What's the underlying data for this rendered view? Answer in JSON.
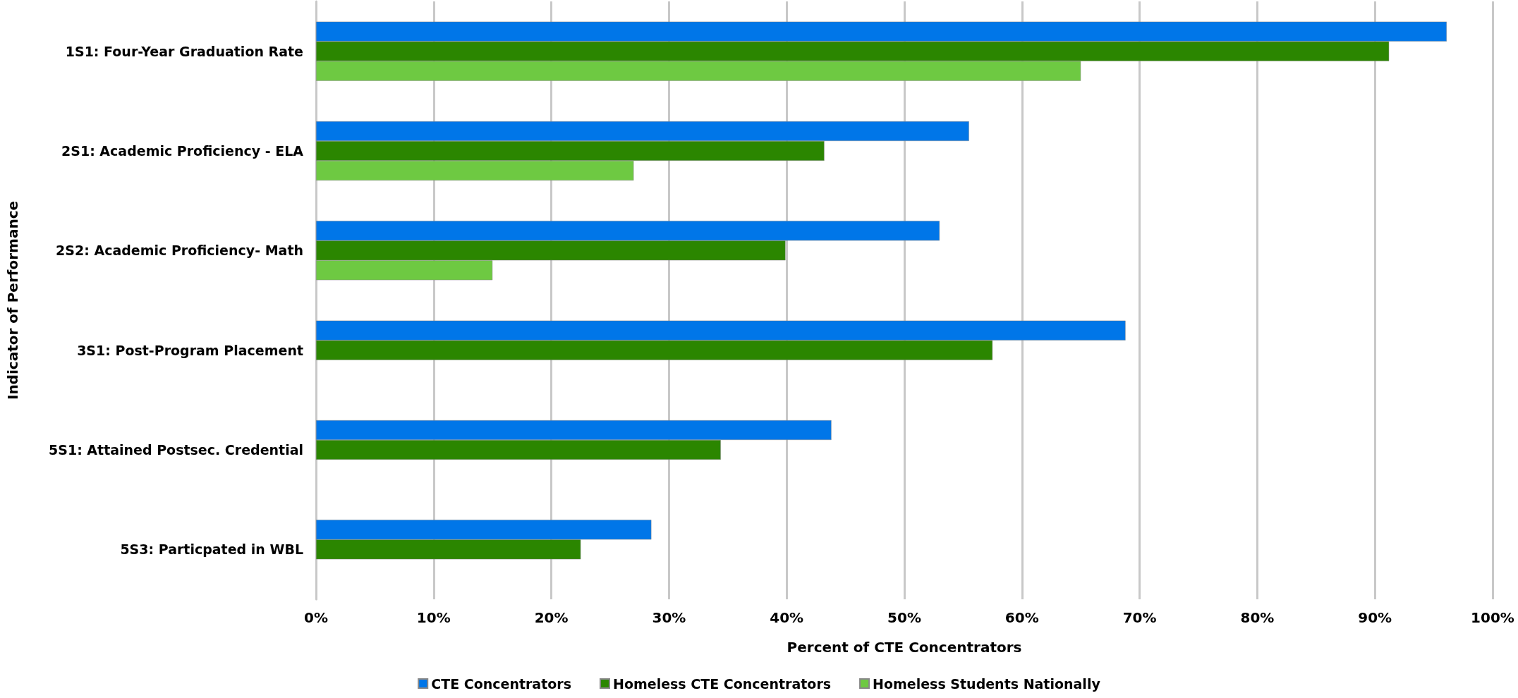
{
  "chart_data": {
    "type": "bar",
    "orientation": "horizontal",
    "xlabel": "Percent of CTE Concentrators",
    "ylabel": "Indicator of Performance",
    "categories": [
      "1S1: Four-Year Graduation Rate",
      "2S1: Academic Proficiency - ELA",
      "2S2: Academic Proficiency- Math",
      "3S1: Post-Program Placement",
      "5S1: Attained Postsec. Credential",
      "5S3: Particpated in WBL"
    ],
    "series": [
      {
        "name": "CTE Concentrators",
        "color": "#0076e8",
        "values": [
          96.1,
          55.5,
          53,
          68.8,
          43.8,
          28.5
        ]
      },
      {
        "name": "Homeless CTE Concentrators",
        "color": "#2b8600",
        "values": [
          91.2,
          43.2,
          39.9,
          57.5,
          34.4,
          22.5
        ]
      },
      {
        "name": "Homeless Students Nationally",
        "color": "#6ec942",
        "values": [
          65,
          27,
          15,
          null,
          null,
          null
        ]
      }
    ],
    "xlim": [
      0,
      100
    ],
    "xticks": [
      {
        "value": 0,
        "label": "0%"
      },
      {
        "value": 10,
        "label": "10%"
      },
      {
        "value": 20,
        "label": "20%"
      },
      {
        "value": 30,
        "label": "30%"
      },
      {
        "value": 40,
        "label": "40%"
      },
      {
        "value": 50,
        "label": "50%"
      },
      {
        "value": 60,
        "label": "60%"
      },
      {
        "value": 70,
        "label": "70%"
      },
      {
        "value": 80,
        "label": "80%"
      },
      {
        "value": 90,
        "label": "90%"
      },
      {
        "value": 100,
        "label": "100%"
      }
    ],
    "grid": "x",
    "legend": "bottom"
  }
}
